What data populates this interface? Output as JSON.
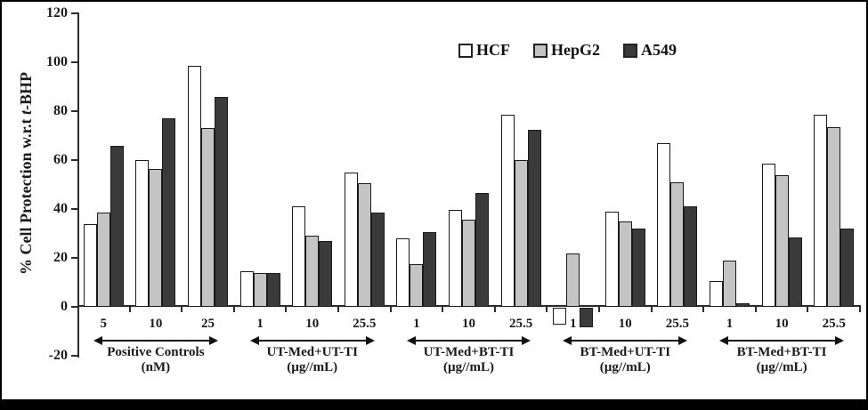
{
  "figure": {
    "background": "#ffffff",
    "border_color": "#000000",
    "bottom_strip_color": "#000000"
  },
  "ylabel_parts": {
    "prefix": "% Cell Protection w.r.t ",
    "italic_t": "t",
    "suffix": "-BHP"
  },
  "legend": {
    "items": [
      {
        "label": "HCF",
        "color": "#ffffff"
      },
      {
        "label": "HepG2",
        "color": "#c4c4c4"
      },
      {
        "label": "A549",
        "color": "#3a3a3a"
      }
    ]
  },
  "chart_data": {
    "type": "bar",
    "title": "",
    "xlabel": "",
    "ylabel": "% Cell Protection w.r.t t-BHP",
    "ylim": [
      -20,
      120
    ],
    "yticks": [
      120,
      100,
      80,
      60,
      40,
      20,
      0,
      -20
    ],
    "grid": false,
    "legend_position": "top-center-inside",
    "groups": [
      {
        "label": "Positive Controls",
        "unit": "(nM)",
        "doses": [
          "5",
          "10",
          "25"
        ]
      },
      {
        "label": "UT-Med+UT-TI",
        "unit": "(µg//mL)",
        "doses": [
          "1",
          "10",
          "25.5"
        ]
      },
      {
        "label": "UT-Med+BT-TI",
        "unit": "(µg//mL)",
        "doses": [
          "1",
          "10",
          "25.5"
        ]
      },
      {
        "label": "BT-Med+UT-TI",
        "unit": "(µg//mL)",
        "doses": [
          "1",
          "10",
          "25.5"
        ]
      },
      {
        "label": "BT-Med+BT-TI",
        "unit": "(µg//mL)",
        "doses": [
          "1",
          "10",
          "25.5"
        ]
      }
    ],
    "series": [
      {
        "name": "HCF",
        "color": "#ffffff",
        "values": [
          [
            34,
            60,
            98.5
          ],
          [
            14.5,
            41,
            55
          ],
          [
            28,
            39.5,
            78.5
          ],
          [
            -7,
            39,
            67
          ],
          [
            10.5,
            58.5,
            78.5
          ]
        ]
      },
      {
        "name": "HepG2",
        "color": "#c4c4c4",
        "values": [
          [
            38.5,
            56.5,
            73
          ],
          [
            14,
            29,
            50.5
          ],
          [
            17.5,
            35.5,
            60
          ],
          [
            22,
            35,
            51
          ],
          [
            19,
            54,
            73.5
          ]
        ]
      },
      {
        "name": "A549",
        "color": "#3a3a3a",
        "values": [
          [
            66,
            77,
            86
          ],
          [
            14,
            27,
            38.5
          ],
          [
            30.5,
            46.5,
            72.5
          ],
          [
            -8,
            32,
            41
          ],
          [
            1.5,
            28.5,
            32
          ]
        ]
      }
    ]
  }
}
